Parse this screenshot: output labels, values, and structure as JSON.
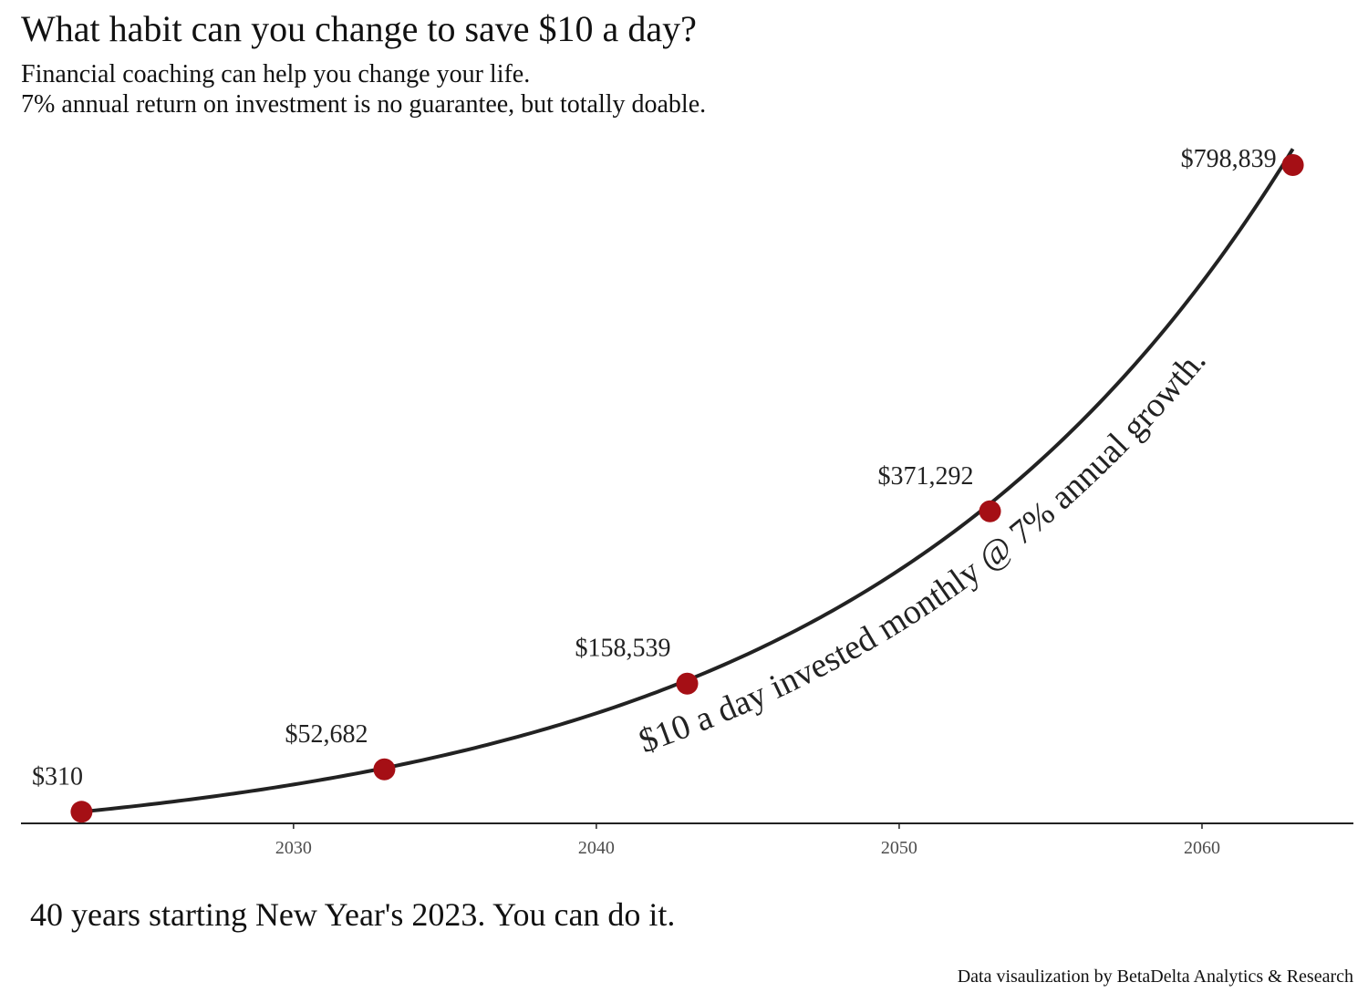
{
  "header": {
    "title": "What habit can you change to save $10 a day?",
    "subtitle_line1": "Financial coaching can help you change your life.",
    "subtitle_line2": "7% annual return on investment is no guarantee, but totally doable."
  },
  "footer": {
    "caption": "40 years starting New Year's 2023.  You can do it.",
    "credit": "Data visaulization by BetaDelta Analytics & Research"
  },
  "chart_data": {
    "type": "line",
    "title": "What habit can you change to save $10 a day?",
    "xlabel": "",
    "ylabel": "",
    "xlim": [
      2021,
      2065
    ],
    "ylim": [
      -14000,
      798839
    ],
    "x_ticks": [
      2030,
      2040,
      2050,
      2060
    ],
    "grid": false,
    "legend": "none",
    "line_color": "#222222",
    "point_color": "#a50f15",
    "curve_annotation": "$10  a day invested monthly @ 7% annual growth.",
    "series": [
      {
        "values_x": [
          2023,
          2033,
          2043,
          2053,
          2063
        ],
        "values_y": [
          310,
          52682,
          158539,
          371292,
          798839
        ],
        "labels": [
          "$310",
          "$52,682",
          "$158,539",
          "$371,292",
          "$798,839"
        ]
      }
    ]
  }
}
